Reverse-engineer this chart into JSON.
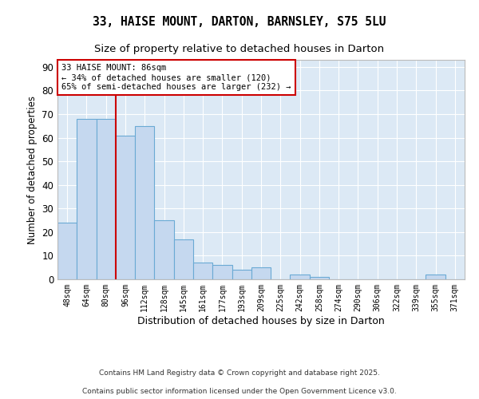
{
  "title1": "33, HAISE MOUNT, DARTON, BARNSLEY, S75 5LU",
  "title2": "Size of property relative to detached houses in Darton",
  "xlabel": "Distribution of detached houses by size in Darton",
  "ylabel": "Number of detached properties",
  "categories": [
    "48sqm",
    "64sqm",
    "80sqm",
    "96sqm",
    "112sqm",
    "128sqm",
    "145sqm",
    "161sqm",
    "177sqm",
    "193sqm",
    "209sqm",
    "225sqm",
    "242sqm",
    "258sqm",
    "274sqm",
    "290sqm",
    "306sqm",
    "322sqm",
    "339sqm",
    "355sqm",
    "371sqm"
  ],
  "values": [
    24,
    68,
    68,
    61,
    65,
    25,
    17,
    7,
    6,
    4,
    5,
    0,
    2,
    1,
    0,
    0,
    0,
    0,
    0,
    2,
    0
  ],
  "bar_color": "#c5d8ef",
  "bar_edge_color": "#6aaad4",
  "red_line_index": 2.5,
  "annotation_text": "33 HAISE MOUNT: 86sqm\n← 34% of detached houses are smaller (120)\n65% of semi-detached houses are larger (232) →",
  "annotation_box_color": "#ffffff",
  "annotation_box_edge_color": "#cc0000",
  "ylim": [
    0,
    93
  ],
  "yticks": [
    0,
    10,
    20,
    30,
    40,
    50,
    60,
    70,
    80,
    90
  ],
  "footer1": "Contains HM Land Registry data © Crown copyright and database right 2025.",
  "footer2": "Contains public sector information licensed under the Open Government Licence v3.0.",
  "bg_color": "#dce9f5",
  "fig_bg_color": "#ffffff",
  "grid_color": "#ffffff",
  "title1_fontsize": 10.5,
  "title2_fontsize": 9.5
}
